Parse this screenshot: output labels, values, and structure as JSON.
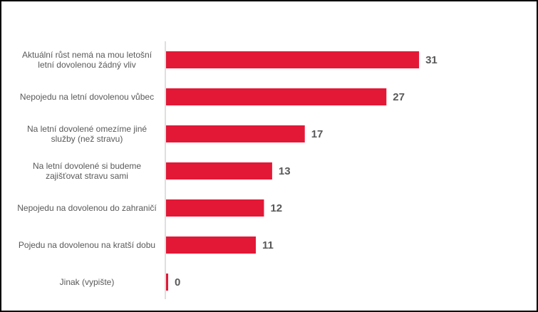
{
  "chart_data": {
    "type": "bar",
    "orientation": "horizontal",
    "categories": [
      [
        "Aktuální růst nemá na mou letošní",
        "letní dovolenou žádný vliv"
      ],
      [
        "Nepojedu na letní dovolenou vůbec"
      ],
      [
        "Na letní dovolené omezíme jiné",
        "služby (než stravu)"
      ],
      [
        "Na letní dovolené si budeme",
        "zajišťovat stravu sami"
      ],
      [
        "Nepojedu na dovolenou do zahraničí"
      ],
      [
        "Pojedu na dovolenou na kratší dobu"
      ],
      [
        "Jinak (vypište)"
      ]
    ],
    "values": [
      31,
      27,
      17,
      13,
      12,
      11,
      0
    ],
    "value_labels": [
      "31",
      "27",
      "17",
      "13",
      "12",
      "11",
      "0"
    ],
    "title": "",
    "xlabel": "",
    "ylabel": "",
    "xlim": [
      0,
      33
    ],
    "grid": false,
    "legend": "none",
    "bar_color": "#E31837",
    "axis_color": "#BFBFBF"
  }
}
